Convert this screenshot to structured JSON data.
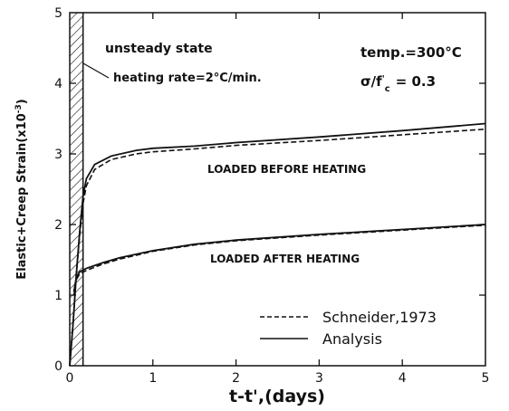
{
  "chart_data": {
    "type": "line",
    "xlabel": "t-t',(days)",
    "ylabel": "Elastic+Creep Strain(x10",
    "ylabel_exp": "-3",
    "ylabel_close": ")",
    "xlim": [
      0,
      5
    ],
    "ylim": [
      0,
      5
    ],
    "x_ticks": [
      "0",
      "1",
      "2",
      "3",
      "4",
      "5"
    ],
    "y_ticks": [
      "0",
      "1",
      "2",
      "3",
      "4",
      "5"
    ],
    "grid": false,
    "legend_position": "bottom-right",
    "hatched_region": {
      "x": [
        0.0,
        0.16
      ]
    },
    "annotations": {
      "unsteady": "unsteady state",
      "heating_rate": "heating rate=2°C/min.",
      "temp": "temp.=300°C",
      "sigma_prefix": "σ/f",
      "sigma_prime": "'",
      "sigma_sub": "c",
      "sigma_value": "= 0.3",
      "loaded_before": "LOADED BEFORE HEATING",
      "loaded_after": "LOADED AFTER HEATING"
    },
    "series": [
      {
        "name": "Analysis",
        "group": "LOADED BEFORE HEATING",
        "style": "solid",
        "x": [
          0.0,
          0.04,
          0.08,
          0.12,
          0.16,
          0.2,
          0.3,
          0.5,
          0.8,
          1.0,
          1.5,
          2.0,
          3.0,
          4.0,
          5.0
        ],
        "y": [
          0.0,
          0.6,
          1.3,
          1.9,
          2.4,
          2.65,
          2.85,
          2.97,
          3.05,
          3.08,
          3.11,
          3.16,
          3.24,
          3.33,
          3.43
        ]
      },
      {
        "name": "Schneider,1973",
        "group": "LOADED BEFORE HEATING",
        "style": "dashed",
        "x": [
          0.0,
          0.04,
          0.08,
          0.12,
          0.16,
          0.2,
          0.3,
          0.5,
          0.8,
          1.0,
          1.5,
          2.0,
          3.0,
          4.0,
          5.0
        ],
        "y": [
          0.0,
          0.6,
          1.3,
          1.85,
          2.3,
          2.55,
          2.78,
          2.92,
          3.0,
          3.03,
          3.07,
          3.12,
          3.19,
          3.27,
          3.35
        ]
      },
      {
        "name": "Analysis",
        "group": "LOADED AFTER HEATING",
        "style": "solid",
        "x": [
          0.05,
          0.08,
          0.12,
          0.2,
          0.4,
          0.6,
          1.0,
          1.5,
          2.0,
          3.0,
          4.0,
          5.0
        ],
        "y": [
          1.05,
          1.25,
          1.33,
          1.38,
          1.46,
          1.53,
          1.63,
          1.72,
          1.78,
          1.86,
          1.93,
          2.0
        ]
      },
      {
        "name": "Schneider,1973",
        "group": "LOADED AFTER HEATING",
        "style": "dashed",
        "x": [
          0.05,
          0.08,
          0.12,
          0.2,
          0.4,
          0.6,
          1.0,
          1.5,
          2.0,
          3.0,
          4.0,
          5.0
        ],
        "y": [
          1.0,
          1.22,
          1.3,
          1.35,
          1.44,
          1.51,
          1.62,
          1.71,
          1.77,
          1.85,
          1.92,
          1.99
        ]
      }
    ],
    "legend": [
      {
        "label": "Schneider,1973",
        "style": "dashed"
      },
      {
        "label": "Analysis",
        "style": "solid"
      }
    ]
  }
}
